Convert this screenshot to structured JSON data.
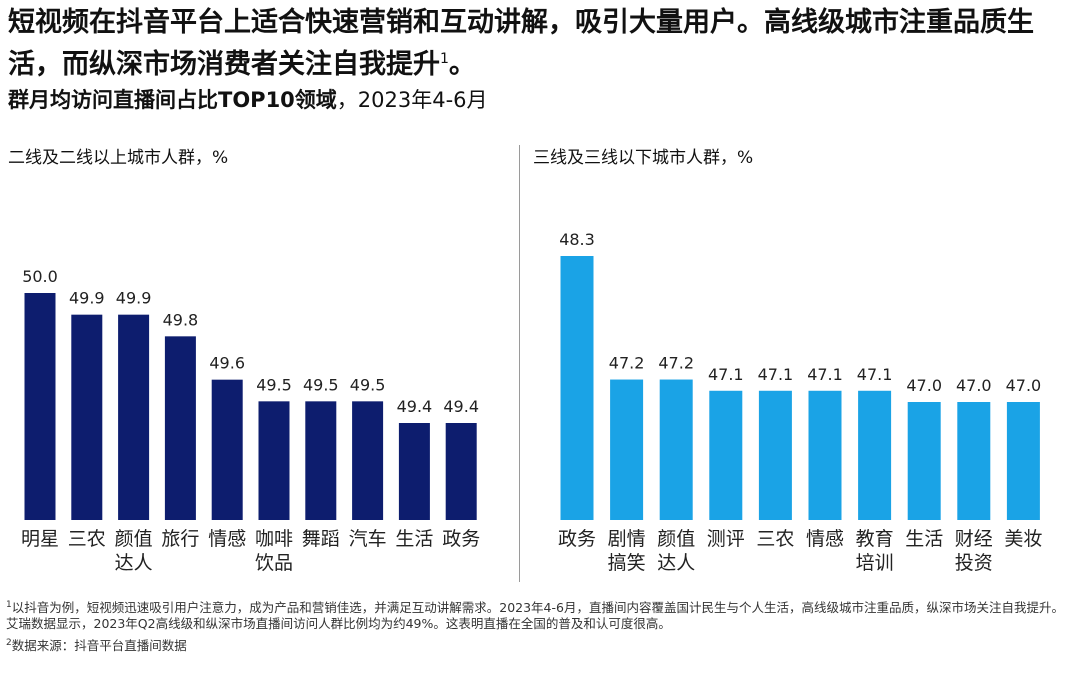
{
  "headline": {
    "text": "短视频在抖音平台上适合快速营销和互动讲解，吸引大量用户。高线级城市注重品质生活，而纵深市场消费者关注自我提升",
    "footnote_mark": "1",
    "end": "。"
  },
  "subtitle": {
    "bold": "群月均访问直播间占比TOP10领域",
    "rest": "，2023年4-6月"
  },
  "chart_data": [
    {
      "type": "bar",
      "title": "二线及二线以上城市人群，%",
      "categories": [
        "明星",
        "三农",
        "颜值\n达人",
        "旅行",
        "情感",
        "咖啡\n饮品",
        "舞蹈",
        "汽车",
        "生活",
        "政务"
      ],
      "values": [
        50.0,
        49.9,
        49.9,
        49.8,
        49.6,
        49.5,
        49.5,
        49.5,
        49.4,
        49.4
      ],
      "value_labels": [
        "50.0",
        "49.9",
        "49.9",
        "49.8",
        "49.6",
        "49.5",
        "49.5",
        "49.5",
        "49.4",
        "49.4"
      ],
      "color": "#0d1d6e"
    },
    {
      "type": "bar",
      "title": "三线及三线以下城市人群，%",
      "categories": [
        "政务",
        "剧情\n搞笑",
        "颜值\n达人",
        "测评",
        "三农",
        "情感",
        "教育\n培训",
        "生活",
        "财经\n投资",
        "美妆"
      ],
      "values": [
        48.3,
        47.2,
        47.2,
        47.1,
        47.1,
        47.1,
        47.1,
        47.0,
        47.0,
        47.0
      ],
      "value_labels": [
        "48.3",
        "47.2",
        "47.2",
        "47.1",
        "47.1",
        "47.1",
        "47.1",
        "47.0",
        "47.0",
        "47.0"
      ],
      "color": "#1aa3e6"
    }
  ],
  "notes": {
    "note1_mark": "1",
    "note1": "以抖音为例，短视频迅速吸引用户注意力，成为产品和营销佳选，并满足互动讲解需求。2023年4-6月，直播间内容覆盖国计民生与个人生活，高线级城市注重品质，纵深市场关注自我提升。艾瑞数据显示，2023年Q2高线级和纵深市场直播间访问人群比例均为约49%。这表明直播在全国的普及和认可度很高。",
    "note2_mark": "2",
    "note2": "数据来源：抖音平台直播间数据"
  }
}
